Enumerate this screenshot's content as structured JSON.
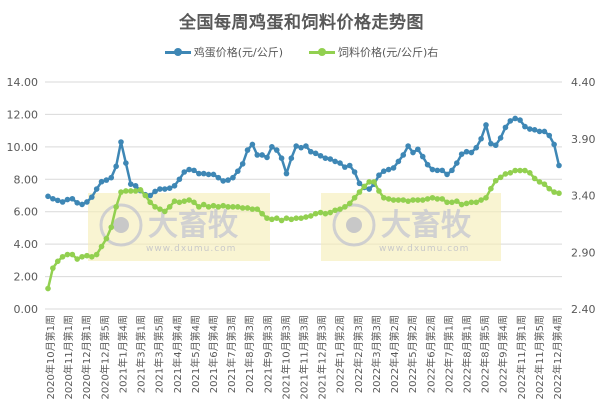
{
  "chart_data": {
    "type": "line",
    "title": "全国每周鸡蛋和饲料价格走势图",
    "legend_position": "top",
    "grid": true,
    "left_axis": {
      "ylim": [
        0,
        14
      ],
      "ticks": [
        "0.00",
        "2.00",
        "4.00",
        "6.00",
        "8.00",
        "10.00",
        "12.00",
        "14.00"
      ]
    },
    "right_axis": {
      "ylim": [
        2.4,
        4.4
      ],
      "ticks": [
        "2.40",
        "2.90",
        "3.40",
        "3.90",
        "4.40"
      ]
    },
    "x_tick_labels": [
      "2020年10月第1周",
      "2020年11月第1周",
      "2020年12月第1周",
      "2020年12月第5周",
      "2021年1月第4周",
      "2021年3月第1周",
      "2021年3月第5周",
      "2021年4月第4周",
      "2021年5月第4周",
      "2021年6月第4周",
      "2021年7月第3周",
      "2021年8月第3周",
      "2021年9月第3周",
      "2021年10月第3周",
      "2021年11月第3周",
      "2021年12月第3周",
      "2022年1月第2周",
      "2022年2月第3周",
      "2022年3月第3周",
      "2022年4月第2周",
      "2022年5月第2周",
      "2022年6月第2周",
      "2022年7月第1周",
      "2022年8月第1周",
      "2022年8月第5周",
      "2022年9月第4周",
      "2022年11月第1周",
      "2022年11月第5周",
      "2022年12月第4周"
    ],
    "series": [
      {
        "name": "鸡蛋价格(元/公斤)",
        "axis": "left",
        "color": "#3E87B5",
        "values": [
          6.95,
          6.8,
          6.7,
          6.6,
          6.75,
          6.8,
          6.55,
          6.45,
          6.6,
          6.9,
          7.4,
          7.85,
          7.95,
          8.1,
          8.8,
          10.3,
          9.0,
          7.7,
          7.6,
          7.3,
          7.05,
          7.0,
          7.25,
          7.4,
          7.4,
          7.45,
          7.6,
          8.0,
          8.45,
          8.6,
          8.55,
          8.35,
          8.35,
          8.3,
          8.3,
          8.1,
          7.9,
          7.95,
          8.1,
          8.5,
          8.95,
          9.8,
          10.15,
          9.5,
          9.5,
          9.35,
          10.0,
          9.8,
          9.3,
          8.35,
          9.3,
          10.05,
          9.95,
          10.05,
          9.7,
          9.6,
          9.45,
          9.3,
          9.25,
          9.1,
          9.0,
          8.75,
          8.85,
          8.45,
          7.75,
          7.5,
          7.4,
          7.7,
          8.25,
          8.5,
          8.6,
          8.7,
          9.1,
          9.5,
          10.05,
          9.65,
          9.85,
          9.4,
          8.9,
          8.6,
          8.55,
          8.55,
          8.3,
          8.55,
          9.0,
          9.55,
          9.7,
          9.65,
          9.95,
          10.5,
          11.35,
          10.2,
          10.1,
          10.55,
          11.2,
          11.6,
          11.75,
          11.65,
          11.25,
          11.1,
          11.05,
          10.95,
          10.95,
          10.7,
          10.15,
          8.85
        ]
      },
      {
        "name": "饲料价格(元/公斤)右",
        "axis": "right",
        "color": "#92D050",
        "values": [
          2.58,
          2.76,
          2.82,
          2.86,
          2.88,
          2.88,
          2.84,
          2.86,
          2.87,
          2.86,
          2.88,
          2.95,
          3.02,
          3.12,
          3.3,
          3.43,
          3.44,
          3.44,
          3.44,
          3.45,
          3.4,
          3.34,
          3.3,
          3.28,
          3.26,
          3.3,
          3.35,
          3.34,
          3.35,
          3.36,
          3.34,
          3.3,
          3.32,
          3.3,
          3.31,
          3.3,
          3.31,
          3.3,
          3.3,
          3.3,
          3.29,
          3.29,
          3.28,
          3.28,
          3.24,
          3.2,
          3.19,
          3.2,
          3.18,
          3.2,
          3.19,
          3.2,
          3.2,
          3.21,
          3.22,
          3.24,
          3.25,
          3.24,
          3.25,
          3.27,
          3.28,
          3.3,
          3.33,
          3.38,
          3.43,
          3.48,
          3.52,
          3.52,
          3.44,
          3.38,
          3.37,
          3.36,
          3.36,
          3.36,
          3.35,
          3.36,
          3.36,
          3.36,
          3.37,
          3.38,
          3.37,
          3.37,
          3.34,
          3.34,
          3.35,
          3.32,
          3.33,
          3.34,
          3.34,
          3.36,
          3.38,
          3.46,
          3.53,
          3.56,
          3.59,
          3.6,
          3.62,
          3.62,
          3.62,
          3.6,
          3.55,
          3.52,
          3.5,
          3.46,
          3.43,
          3.42
        ]
      }
    ],
    "watermarks": [
      {
        "text": "大畜牧",
        "url_text": "www.dxumu.com"
      },
      {
        "text": "大畜牧",
        "url_text": "www.dxumu.com"
      }
    ]
  },
  "legend": {
    "egg_label": "鸡蛋价格(元/公斤)",
    "feed_label": "饲料价格(元/公斤)右"
  },
  "colors": {
    "egg": "#3E87B5",
    "feed": "#92D050",
    "grid": "#D9D9D9",
    "text": "#595959"
  }
}
